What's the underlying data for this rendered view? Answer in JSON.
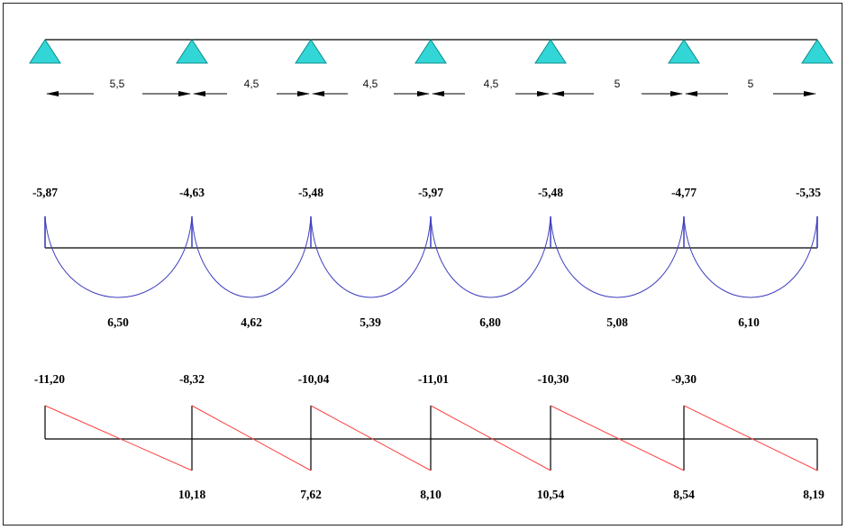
{
  "spans": [
    "5,5",
    "4,5",
    "4,5",
    "4,5",
    "5",
    "5"
  ],
  "moments": {
    "support": [
      "-5,87",
      "-4,63",
      "-5,48",
      "-5,97",
      "-5,48",
      "-4,77",
      "-5,35"
    ],
    "span": [
      "6,50",
      "4,62",
      "5,39",
      "6,80",
      "5,08",
      "6,10"
    ]
  },
  "shear": {
    "top": [
      "-11,20",
      "-8,32",
      "-10,04",
      "-11,01",
      "-10,30",
      "-9,30"
    ],
    "bottom": [
      "10,18",
      "7,62",
      "8,10",
      "10,54",
      "8,54",
      "8,19"
    ]
  },
  "colors": {
    "support": "#33d6d6",
    "moment_curve": "#4040c0",
    "shear_line": "#ff4040",
    "line": "#000000"
  }
}
